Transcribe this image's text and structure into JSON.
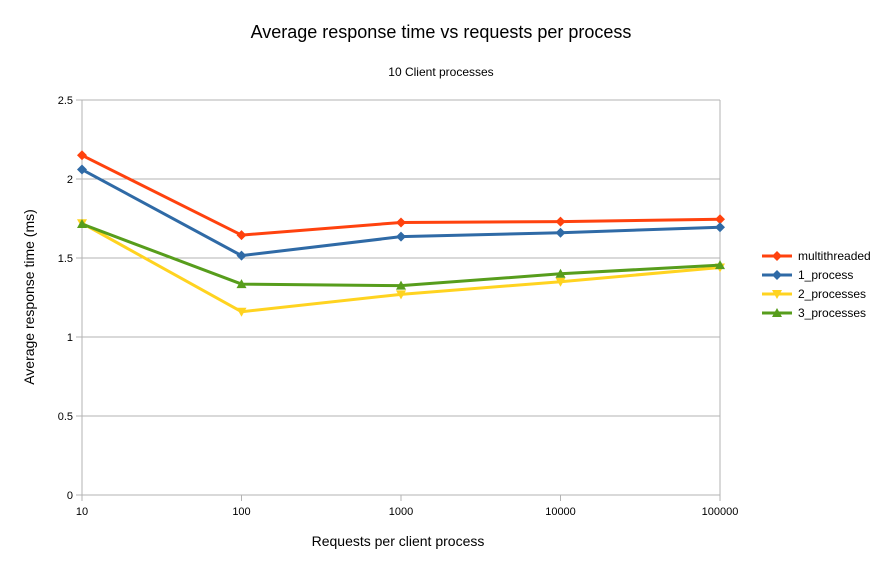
{
  "chart_data": {
    "type": "line",
    "title": "Average response time vs requests per process",
    "subtitle": "10 Client processes",
    "xlabel": "Requests per client process",
    "ylabel": "Average response time (ms)",
    "x": [
      "10",
      "100",
      "1000",
      "10000",
      "100000"
    ],
    "ylim": [
      0,
      2.5
    ],
    "yticks": [
      "0",
      "0.5",
      "1",
      "1.5",
      "2",
      "2.5"
    ],
    "grid": "horizontal",
    "legend_position": "right",
    "series": [
      {
        "name": "multithreaded",
        "color": "#ff420e",
        "marker": "diamond",
        "values": [
          2.15,
          1.645,
          1.725,
          1.73,
          1.745
        ]
      },
      {
        "name": "1_process",
        "color": "#2f6aa6",
        "marker": "diamond",
        "values": [
          2.06,
          1.515,
          1.635,
          1.66,
          1.695
        ]
      },
      {
        "name": "2_processes",
        "color": "#ffd320",
        "marker": "triangle-down",
        "values": [
          1.72,
          1.16,
          1.27,
          1.35,
          1.44
        ]
      },
      {
        "name": "3_processes",
        "color": "#579d1c",
        "marker": "triangle-up",
        "values": [
          1.715,
          1.335,
          1.325,
          1.4,
          1.455
        ]
      }
    ]
  }
}
